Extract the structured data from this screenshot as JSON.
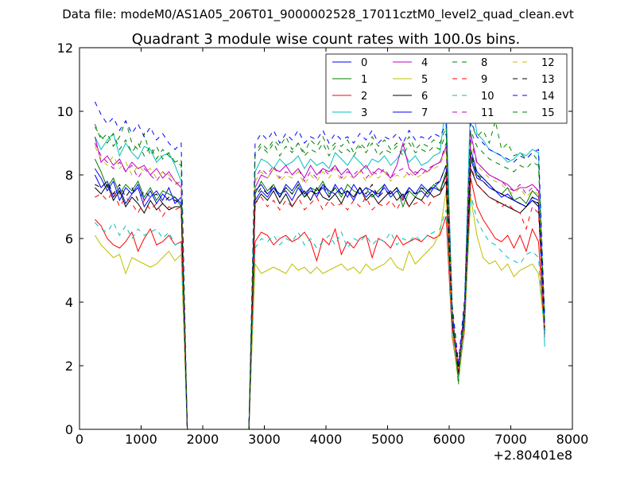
{
  "header": {
    "filename": "Data file: modeM0/AS1A05_206T01_9000002528_17011cztM0_level2_quad_clean.evt"
  },
  "chart_data": {
    "type": "line",
    "title": "Quadrant 3 module wise count rates with 100.0s bins.",
    "xlabel": "",
    "ylabel": "",
    "x_offset_label": "+2.80401e8",
    "xlim": [
      0,
      8000
    ],
    "ylim": [
      0,
      12
    ],
    "x_ticks": [
      0,
      1000,
      2000,
      3000,
      4000,
      5000,
      6000,
      7000,
      8000
    ],
    "y_ticks": [
      0,
      2,
      4,
      6,
      8,
      10,
      12
    ],
    "grid": false,
    "legend_position": "top-right",
    "legend_columns": 4,
    "x": [
      250,
      350,
      450,
      550,
      650,
      750,
      850,
      950,
      1050,
      1150,
      1250,
      1350,
      1450,
      1550,
      1650,
      1750,
      2750,
      2850,
      2950,
      3050,
      3150,
      3250,
      3350,
      3450,
      3550,
      3650,
      3750,
      3850,
      3950,
      4050,
      4150,
      4250,
      4350,
      4450,
      4550,
      4650,
      4750,
      4850,
      4950,
      5050,
      5150,
      5250,
      5350,
      5450,
      5550,
      5650,
      5750,
      5850,
      5950,
      6050,
      6150,
      6250,
      6350,
      6450,
      6550,
      6650,
      6750,
      6850,
      6950,
      7050,
      7150,
      7250,
      7350,
      7450,
      7550
    ],
    "series": [
      {
        "name": "0",
        "color": "#0000ff",
        "dash": "solid",
        "values": [
          8.0,
          7.6,
          7.8,
          7.3,
          7.6,
          7.1,
          7.4,
          7.6,
          7.0,
          7.3,
          7.5,
          7.2,
          7.6,
          7.1,
          7.3,
          0.0,
          0.0,
          7.2,
          7.5,
          7.3,
          7.6,
          7.4,
          7.5,
          7.2,
          7.6,
          7.3,
          7.5,
          7.4,
          7.6,
          7.3,
          7.7,
          7.4,
          7.5,
          7.2,
          7.6,
          7.3,
          7.5,
          7.4,
          7.6,
          7.3,
          7.5,
          7.2,
          7.6,
          7.4,
          7.5,
          7.3,
          7.6,
          7.5,
          8.0,
          3.5,
          2.0,
          3.7,
          8.5,
          7.9,
          7.8,
          7.6,
          7.5,
          7.3,
          7.4,
          7.2,
          7.1,
          7.0,
          7.3,
          7.2,
          3.2
        ]
      },
      {
        "name": "1",
        "color": "#008000",
        "dash": "solid",
        "values": [
          8.5,
          8.1,
          7.6,
          7.9,
          7.4,
          7.7,
          7.5,
          7.8,
          7.3,
          7.6,
          7.2,
          7.5,
          7.4,
          7.3,
          7.0,
          0.0,
          0.0,
          7.4,
          7.8,
          7.5,
          7.7,
          7.3,
          7.6,
          7.4,
          7.7,
          7.3,
          7.6,
          7.5,
          7.8,
          7.4,
          7.6,
          7.3,
          7.7,
          7.5,
          7.4,
          7.6,
          7.3,
          7.5,
          7.7,
          7.4,
          7.6,
          7.0,
          7.5,
          7.3,
          7.6,
          7.4,
          7.7,
          7.5,
          8.1,
          3.4,
          1.7,
          3.6,
          8.6,
          8.0,
          7.9,
          7.7,
          7.5,
          7.4,
          7.6,
          7.2,
          7.3,
          7.1,
          7.5,
          7.3,
          3.3
        ]
      },
      {
        "name": "2",
        "color": "#ff0000",
        "dash": "solid",
        "values": [
          6.6,
          6.4,
          6.0,
          5.8,
          5.7,
          5.9,
          6.2,
          5.6,
          6.0,
          6.3,
          5.8,
          5.9,
          6.1,
          5.8,
          5.9,
          0.0,
          0.0,
          5.9,
          6.2,
          6.1,
          5.8,
          6.0,
          6.1,
          5.9,
          6.0,
          6.2,
          5.9,
          5.3,
          6.0,
          5.8,
          6.3,
          5.5,
          5.9,
          5.7,
          6.0,
          6.1,
          5.4,
          6.0,
          5.9,
          5.7,
          6.1,
          5.8,
          5.9,
          6.0,
          5.9,
          6.1,
          6.0,
          6.1,
          6.7,
          2.9,
          1.6,
          3.1,
          7.9,
          7.0,
          6.6,
          6.3,
          6.0,
          5.9,
          6.1,
          5.7,
          6.1,
          5.6,
          6.3,
          5.9,
          2.9
        ]
      },
      {
        "name": "3",
        "color": "#00bfbf",
        "dash": "solid",
        "values": [
          9.2,
          8.8,
          9.1,
          9.3,
          8.6,
          9.0,
          8.7,
          8.5,
          8.9,
          8.8,
          8.4,
          8.6,
          8.7,
          8.3,
          7.8,
          0.0,
          0.0,
          8.1,
          8.5,
          8.4,
          8.2,
          8.5,
          8.3,
          8.4,
          8.6,
          8.2,
          8.5,
          8.3,
          8.4,
          8.2,
          8.7,
          8.5,
          8.3,
          8.6,
          8.4,
          8.2,
          8.5,
          8.4,
          8.6,
          8.3,
          8.5,
          8.8,
          8.4,
          8.6,
          8.3,
          8.4,
          8.6,
          8.7,
          10.3,
          3.7,
          1.9,
          4.0,
          10.6,
          9.3,
          9.1,
          8.8,
          8.7,
          8.6,
          8.4,
          8.5,
          8.7,
          8.6,
          8.8,
          8.7,
          2.6
        ]
      },
      {
        "name": "4",
        "color": "#bf00bf",
        "dash": "solid",
        "values": [
          9.2,
          8.4,
          8.6,
          8.3,
          8.5,
          8.1,
          8.4,
          8.2,
          8.3,
          8.0,
          8.2,
          7.9,
          8.1,
          7.8,
          7.6,
          0.0,
          0.0,
          7.6,
          8.0,
          7.9,
          8.2,
          8.1,
          8.3,
          8.0,
          8.2,
          7.9,
          8.3,
          8.0,
          8.2,
          8.1,
          8.3,
          8.0,
          8.2,
          7.9,
          8.1,
          8.3,
          8.0,
          8.2,
          8.1,
          7.9,
          8.3,
          9.0,
          8.2,
          8.0,
          8.2,
          8.1,
          8.3,
          8.4,
          8.9,
          3.6,
          2.0,
          3.8,
          9.3,
          8.4,
          8.2,
          8.0,
          7.9,
          7.8,
          7.7,
          7.5,
          7.6,
          7.6,
          7.7,
          7.5,
          3.0
        ]
      },
      {
        "name": "5",
        "color": "#bfbf00",
        "dash": "solid",
        "values": [
          6.1,
          5.8,
          5.6,
          5.4,
          5.5,
          4.9,
          5.4,
          5.3,
          5.2,
          5.1,
          5.2,
          5.4,
          5.6,
          5.3,
          5.5,
          0.0,
          0.0,
          5.2,
          4.9,
          5.0,
          5.1,
          5.0,
          4.9,
          5.2,
          5.0,
          5.1,
          4.9,
          5.1,
          4.9,
          5.0,
          5.1,
          5.2,
          5.0,
          5.1,
          4.9,
          5.2,
          5.0,
          5.1,
          5.2,
          5.4,
          5.1,
          5.0,
          5.6,
          5.2,
          5.4,
          5.6,
          5.8,
          6.2,
          7.5,
          3.0,
          1.5,
          3.2,
          7.3,
          6.1,
          5.4,
          5.2,
          5.3,
          5.0,
          5.2,
          4.8,
          5.0,
          5.1,
          5.2,
          4.9,
          3.1
        ]
      },
      {
        "name": "6",
        "color": "#000000",
        "dash": "solid",
        "values": [
          7.6,
          7.4,
          7.7,
          7.2,
          7.5,
          7.0,
          7.3,
          7.1,
          6.8,
          7.2,
          6.9,
          7.1,
          6.9,
          7.0,
          7.0,
          0.0,
          0.0,
          7.1,
          7.4,
          7.2,
          7.5,
          7.1,
          7.4,
          7.0,
          7.3,
          7.5,
          7.2,
          7.6,
          7.3,
          7.2,
          7.4,
          7.1,
          7.5,
          7.3,
          7.6,
          7.2,
          7.4,
          7.1,
          7.3,
          7.5,
          7.2,
          7.4,
          7.0,
          7.3,
          7.2,
          7.5,
          7.3,
          7.4,
          7.8,
          3.3,
          1.8,
          3.5,
          8.2,
          7.7,
          7.5,
          7.3,
          7.2,
          7.1,
          7.0,
          6.9,
          6.8,
          7.0,
          7.2,
          7.0,
          3.1
        ]
      },
      {
        "name": "7",
        "color": "#0000ff",
        "dash": "solid",
        "values": [
          8.2,
          7.9,
          7.5,
          7.8,
          7.2,
          7.6,
          7.4,
          7.7,
          7.2,
          7.5,
          7.1,
          7.4,
          7.2,
          7.3,
          7.1,
          0.0,
          0.0,
          7.5,
          7.7,
          7.4,
          7.6,
          7.3,
          7.7,
          7.5,
          7.8,
          7.4,
          7.6,
          7.3,
          7.7,
          7.5,
          7.4,
          7.6,
          7.3,
          7.7,
          7.4,
          7.6,
          7.5,
          7.3,
          7.7,
          7.4,
          7.6,
          7.3,
          7.6,
          7.4,
          7.7,
          7.5,
          7.6,
          7.8,
          8.3,
          3.4,
          1.9,
          3.7,
          8.8,
          8.1,
          7.9,
          7.7,
          7.5,
          7.4,
          7.3,
          7.2,
          7.1,
          7.0,
          7.2,
          7.1,
          3.2
        ]
      },
      {
        "name": "8",
        "color": "#008000",
        "dash": "dashed",
        "values": [
          9.6,
          9.1,
          9.3,
          8.9,
          9.2,
          9.7,
          9.0,
          8.8,
          9.3,
          8.6,
          8.9,
          8.5,
          8.7,
          8.4,
          8.3,
          0.0,
          0.0,
          8.7,
          9.0,
          8.8,
          9.1,
          8.9,
          9.2,
          8.8,
          9.0,
          8.7,
          9.1,
          8.9,
          9.2,
          8.8,
          9.0,
          8.9,
          9.1,
          8.7,
          9.0,
          8.8,
          9.2,
          8.9,
          9.1,
          8.8,
          9.0,
          8.9,
          9.2,
          8.8,
          9.0,
          8.9,
          9.1,
          9.0,
          9.5,
          3.8,
          1.4,
          4.0,
          9.6,
          9.2,
          9.4,
          9.0,
          9.7,
          8.8,
          9.0,
          8.6,
          8.7,
          8.5,
          8.7,
          8.4,
          3.6
        ]
      },
      {
        "name": "9",
        "color": "#ff0000",
        "dash": "dashed",
        "values": [
          7.3,
          7.4,
          7.2,
          7.5,
          7.0,
          7.3,
          7.1,
          6.8,
          7.2,
          6.9,
          7.1,
          6.7,
          7.0,
          6.9,
          7.0,
          0.0,
          0.0,
          7.1,
          7.3,
          7.0,
          7.2,
          6.9,
          7.2,
          7.0,
          7.3,
          6.9,
          7.1,
          7.3,
          6.9,
          7.2,
          7.0,
          7.1,
          6.9,
          7.2,
          7.0,
          7.3,
          6.9,
          7.1,
          7.0,
          7.2,
          6.9,
          7.3,
          7.0,
          7.1,
          7.2,
          7.0,
          7.3,
          7.4,
          8.0,
          3.2,
          1.8,
          3.4,
          8.3,
          7.7,
          7.5,
          7.3,
          7.2,
          7.0,
          7.1,
          6.9,
          6.8,
          6.3,
          7.0,
          6.8,
          3.1
        ]
      },
      {
        "name": "10",
        "color": "#00bfbf",
        "dash": "dashed",
        "values": [
          6.5,
          6.3,
          6.2,
          6.5,
          6.1,
          6.4,
          6.0,
          6.3,
          6.1,
          6.2,
          6.3,
          6.0,
          6.2,
          5.8,
          5.9,
          0.0,
          0.0,
          5.7,
          6.0,
          5.9,
          6.1,
          5.8,
          6.0,
          5.9,
          6.2,
          5.8,
          6.0,
          5.7,
          5.9,
          6.1,
          5.8,
          6.2,
          5.7,
          6.0,
          5.9,
          6.1,
          5.8,
          6.0,
          5.9,
          6.2,
          5.8,
          6.0,
          5.9,
          6.1,
          5.9,
          6.1,
          6.2,
          6.3,
          6.9,
          3.0,
          1.6,
          3.2,
          7.4,
          6.6,
          6.2,
          5.9,
          5.8,
          5.6,
          5.4,
          5.3,
          5.2,
          5.5,
          5.6,
          5.4,
          2.9
        ]
      },
      {
        "name": "11",
        "color": "#bf00bf",
        "dash": "dashed",
        "values": [
          9.0,
          8.6,
          8.4,
          8.2,
          8.4,
          8.1,
          8.3,
          7.9,
          8.2,
          8.0,
          7.8,
          8.1,
          7.9,
          7.7,
          7.8,
          0.0,
          0.0,
          7.9,
          8.2,
          8.0,
          8.3,
          7.9,
          8.1,
          8.0,
          8.2,
          7.8,
          8.1,
          7.9,
          8.2,
          8.0,
          8.3,
          7.9,
          8.1,
          8.0,
          8.2,
          7.9,
          8.1,
          8.0,
          8.2,
          7.9,
          8.1,
          8.2,
          8.0,
          8.1,
          8.0,
          8.2,
          8.3,
          8.4,
          9.0,
          3.6,
          1.9,
          3.8,
          9.1,
          8.4,
          8.2,
          8.0,
          7.9,
          7.8,
          7.6,
          7.5,
          7.7,
          7.4,
          7.6,
          7.5,
          3.2
        ]
      },
      {
        "name": "12",
        "color": "#bfbf00",
        "dash": "dashed",
        "values": [
          8.9,
          8.5,
          8.3,
          8.6,
          8.2,
          8.4,
          8.0,
          8.3,
          8.1,
          8.2,
          7.9,
          8.1,
          8.0,
          7.8,
          7.7,
          0.0,
          0.0,
          7.8,
          8.1,
          7.9,
          8.2,
          7.8,
          8.0,
          7.9,
          8.1,
          7.7,
          8.0,
          7.8,
          8.1,
          7.9,
          8.2,
          7.8,
          8.0,
          7.9,
          8.1,
          7.8,
          8.0,
          7.9,
          8.1,
          7.8,
          8.0,
          7.9,
          8.1,
          7.9,
          8.0,
          8.1,
          8.2,
          8.3,
          8.8,
          3.5,
          1.9,
          3.7,
          9.0,
          8.3,
          8.1,
          7.9,
          7.8,
          7.7,
          7.5,
          7.4,
          7.6,
          7.3,
          7.5,
          7.4,
          3.2
        ]
      },
      {
        "name": "13",
        "color": "#000000",
        "dash": "dashed",
        "values": [
          7.7,
          7.6,
          7.8,
          7.4,
          7.7,
          7.3,
          7.6,
          7.2,
          7.5,
          7.3,
          7.4,
          7.1,
          7.3,
          7.2,
          7.1,
          0.0,
          0.0,
          7.3,
          7.6,
          7.4,
          7.7,
          7.3,
          7.6,
          7.4,
          7.7,
          7.3,
          7.5,
          7.4,
          7.7,
          7.3,
          7.6,
          7.4,
          7.5,
          7.3,
          7.6,
          7.4,
          7.7,
          7.3,
          7.5,
          7.4,
          7.6,
          7.3,
          7.5,
          7.4,
          7.6,
          7.5,
          7.7,
          7.8,
          8.3,
          3.4,
          1.9,
          3.6,
          8.7,
          8.0,
          7.8,
          7.6,
          7.5,
          7.4,
          7.3,
          7.2,
          7.1,
          7.0,
          7.3,
          7.1,
          3.2
        ]
      },
      {
        "name": "14",
        "color": "#0000ff",
        "dash": "dashed",
        "values": [
          10.3,
          9.9,
          9.6,
          9.8,
          9.4,
          9.7,
          9.3,
          9.6,
          9.2,
          9.5,
          9.1,
          9.3,
          9.0,
          8.8,
          9.0,
          0.0,
          0.0,
          9.0,
          9.3,
          9.1,
          9.4,
          9.0,
          9.3,
          9.1,
          9.4,
          9.0,
          9.2,
          9.1,
          9.4,
          9.0,
          9.3,
          9.1,
          9.2,
          9.0,
          9.3,
          9.1,
          9.4,
          9.0,
          9.2,
          9.1,
          9.3,
          9.0,
          9.4,
          9.1,
          9.2,
          9.1,
          9.3,
          9.2,
          9.6,
          3.9,
          2.1,
          4.1,
          9.7,
          9.2,
          9.0,
          8.8,
          8.7,
          8.6,
          8.5,
          8.4,
          8.6,
          8.5,
          8.7,
          8.8,
          3.5
        ]
      },
      {
        "name": "15",
        "color": "#008000",
        "dash": "dashed",
        "values": [
          9.5,
          9.2,
          9.0,
          9.3,
          8.8,
          9.1,
          8.7,
          9.0,
          8.6,
          8.9,
          8.5,
          8.8,
          8.6,
          8.4,
          8.5,
          0.0,
          0.0,
          8.6,
          8.9,
          8.7,
          9.0,
          8.6,
          8.9,
          8.7,
          9.0,
          8.6,
          8.8,
          8.7,
          9.0,
          8.6,
          8.9,
          8.7,
          8.8,
          8.6,
          8.9,
          8.7,
          9.0,
          8.6,
          8.8,
          8.7,
          8.9,
          8.6,
          9.0,
          8.7,
          8.8,
          8.7,
          8.9,
          8.8,
          9.3,
          3.7,
          1.5,
          3.9,
          9.4,
          8.9,
          8.7,
          8.5,
          8.4,
          8.3,
          8.2,
          8.1,
          8.3,
          8.2,
          8.4,
          8.3,
          3.4
        ]
      }
    ]
  }
}
